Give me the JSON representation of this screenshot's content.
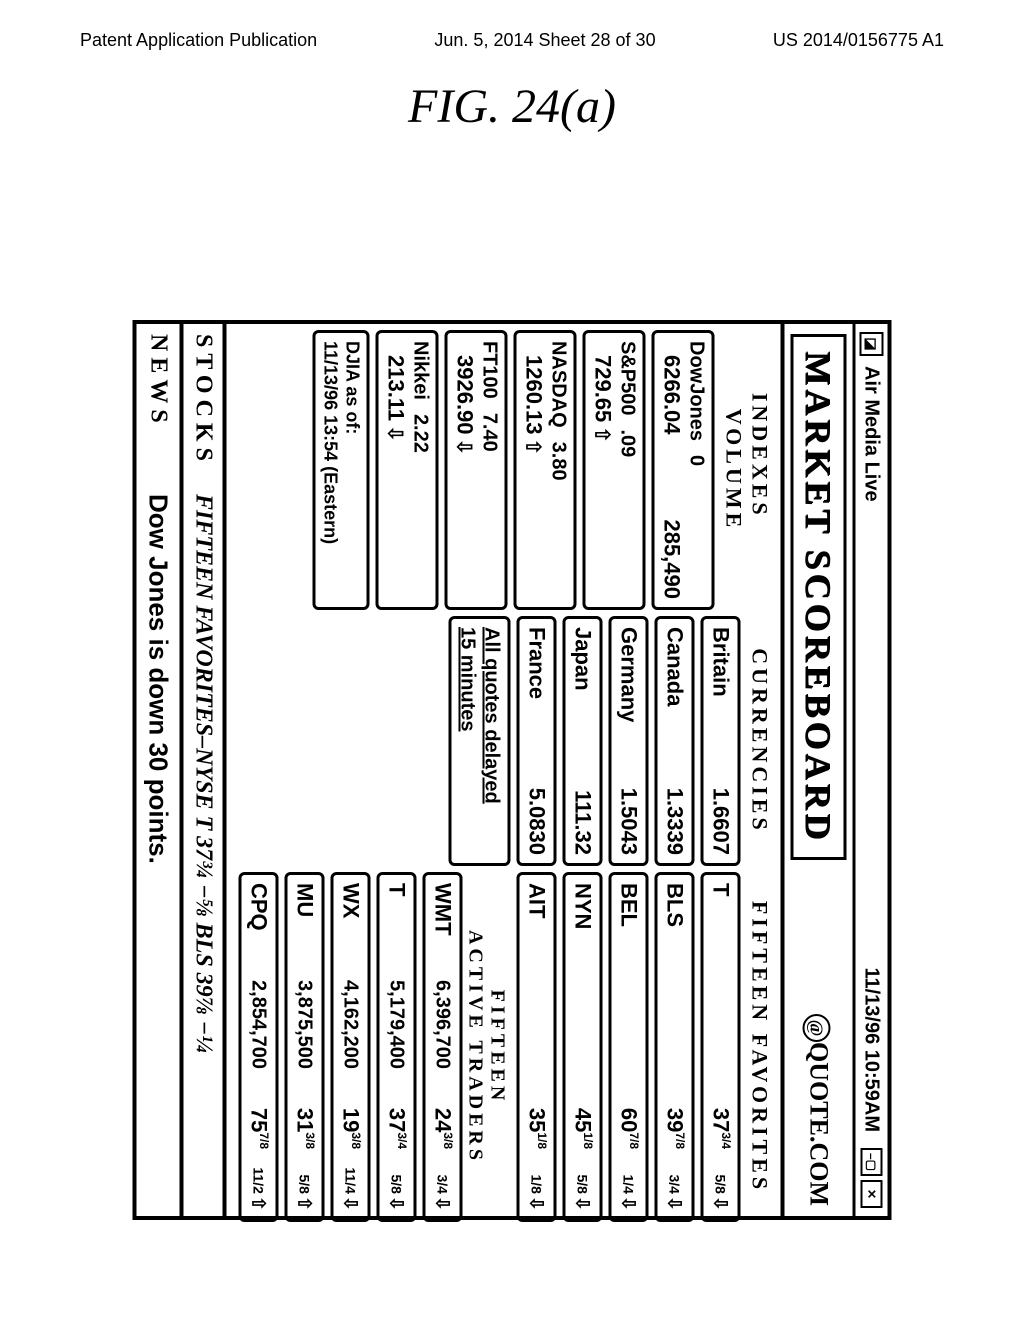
{
  "doc": {
    "header_left": "Patent Application Publication",
    "header_center": "Jun. 5, 2014  Sheet 28 of 30",
    "header_right": "US 2014/0156775 A1",
    "figure_label": "FIG. 24(a)"
  },
  "titlebar": {
    "app_name": "Air Media Live",
    "timestamp": "11/13/96 10:59AM"
  },
  "header": {
    "title": "MARKET SCOREBOARD",
    "brand": "QUOTE.COM"
  },
  "labels": {
    "indexes": "INDEXES",
    "volume": "VOLUME",
    "currencies": "CURRENCIES",
    "favorites": "FIFTEEN FAVORITES",
    "fifteen": "FIFTEEN",
    "active_traders": "ACTIVE TRADERS",
    "stocks": "STOCKS",
    "news": "NEWS"
  },
  "indexes": [
    {
      "name": "DowJones",
      "chg": "0",
      "value": "6266.04",
      "volume": "285,490",
      "dir": ""
    },
    {
      "name": "S&P500",
      "chg": ".09",
      "value": "729.65",
      "volume": "",
      "dir": "up"
    },
    {
      "name": "NASDAQ",
      "chg": "3.80",
      "value": "1260.13",
      "volume": "",
      "dir": "up"
    },
    {
      "name": "FT100",
      "chg": "7.40",
      "value": "3926.90",
      "volume": "",
      "dir": "down"
    },
    {
      "name": "Nikkei",
      "chg": "2.22",
      "value": "213.11",
      "volume": "",
      "dir": "down"
    }
  ],
  "asof": {
    "l1": "DJIA as of:",
    "l2": "11/13/96 13:54 (Eastern)"
  },
  "currencies": [
    {
      "country": "Britain",
      "rate": "1.6607"
    },
    {
      "country": "Canada",
      "rate": "1.3339"
    },
    {
      "country": "Germany",
      "rate": "1.5043"
    },
    {
      "country": "Japan",
      "rate": "111.32"
    },
    {
      "country": "France",
      "rate": "5.0830"
    }
  ],
  "delay": {
    "l1": "All quotes delayed",
    "l2": "15 minutes"
  },
  "favorites": [
    {
      "sym": "T",
      "vol": "",
      "price_int": "37",
      "price_frac": "3/4",
      "chg_frac": "5/8",
      "dir": "down"
    },
    {
      "sym": "BLS",
      "vol": "",
      "price_int": "39",
      "price_frac": "7/8",
      "chg_frac": "3/4",
      "dir": "down"
    },
    {
      "sym": "BEL",
      "vol": "",
      "price_int": "60",
      "price_frac": "7/8",
      "chg_frac": "1/4",
      "dir": "down"
    },
    {
      "sym": "NYN",
      "vol": "",
      "price_int": "45",
      "price_frac": "1/8",
      "chg_frac": "5/8",
      "dir": "down"
    },
    {
      "sym": "AIT",
      "vol": "",
      "price_int": "35",
      "price_frac": "1/8",
      "chg_frac": "1/8",
      "dir": "down"
    }
  ],
  "traders": [
    {
      "sym": "WMT",
      "vol": "6,396,700",
      "price_int": "24",
      "price_frac": "3/8",
      "chg_frac": "3/4",
      "dir": "down"
    },
    {
      "sym": "T",
      "vol": "5,179,400",
      "price_int": "37",
      "price_frac": "3/4",
      "chg_frac": "5/8",
      "dir": "down"
    },
    {
      "sym": "WX",
      "vol": "4,162,200",
      "price_int": "19",
      "price_frac": "3/8",
      "chg_frac": "11/4",
      "dir": "down"
    },
    {
      "sym": "MU",
      "vol": "3,875,500",
      "price_int": "31",
      "price_frac": "3/8",
      "chg_frac": "5/8",
      "dir": "up"
    },
    {
      "sym": "CPQ",
      "vol": "2,854,700",
      "price_int": "75",
      "price_frac": "7/8",
      "chg_frac": "11/2",
      "dir": "up"
    }
  ],
  "ticker": "FIFTEEN FAVORITES–NYSE T 37¾ −⅝ BLS 39⅞ −¼",
  "news": "Dow Jones is down 30 points.",
  "arrows": {
    "up": "⇧",
    "down": "⇩",
    "none": ""
  },
  "colors": {
    "fg": "#000000",
    "bg": "#ffffff"
  }
}
